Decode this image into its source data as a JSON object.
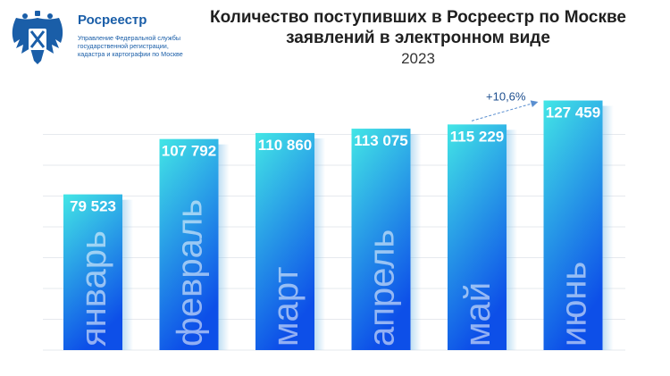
{
  "header": {
    "logo_name": "Росреестр",
    "logo_subtitle": "Управление Федеральной службы государственной регистрации, кадастра и картографии по Москве",
    "title": "Количество поступивших в Росреестр по Москве заявлений в электронном виде",
    "subtitle": "2023"
  },
  "colors": {
    "bar_top": "#43e6e6",
    "bar_bottom": "#0d4fe8",
    "logo_blue": "#1a5ea8"
  },
  "icons": {
    "logo": "double-headed-eagle-emblem-icon"
  },
  "chart_data": {
    "type": "bar",
    "title": "Количество поступивших в Росреестр по Москве заявлений в электронном виде",
    "subtitle": "2023",
    "categories": [
      "январь",
      "февраль",
      "март",
      "апрель",
      "май",
      "июнь"
    ],
    "values": [
      79523,
      107792,
      110860,
      113075,
      115229,
      127459
    ],
    "value_labels": [
      "79 523",
      "107 792",
      "110 860",
      "113 075",
      "115 229",
      "127 459"
    ],
    "ylim": [
      0,
      135000
    ],
    "grid": true,
    "annotation": {
      "text": "+10,6%",
      "from_category": "май",
      "to_category": "июнь"
    }
  }
}
